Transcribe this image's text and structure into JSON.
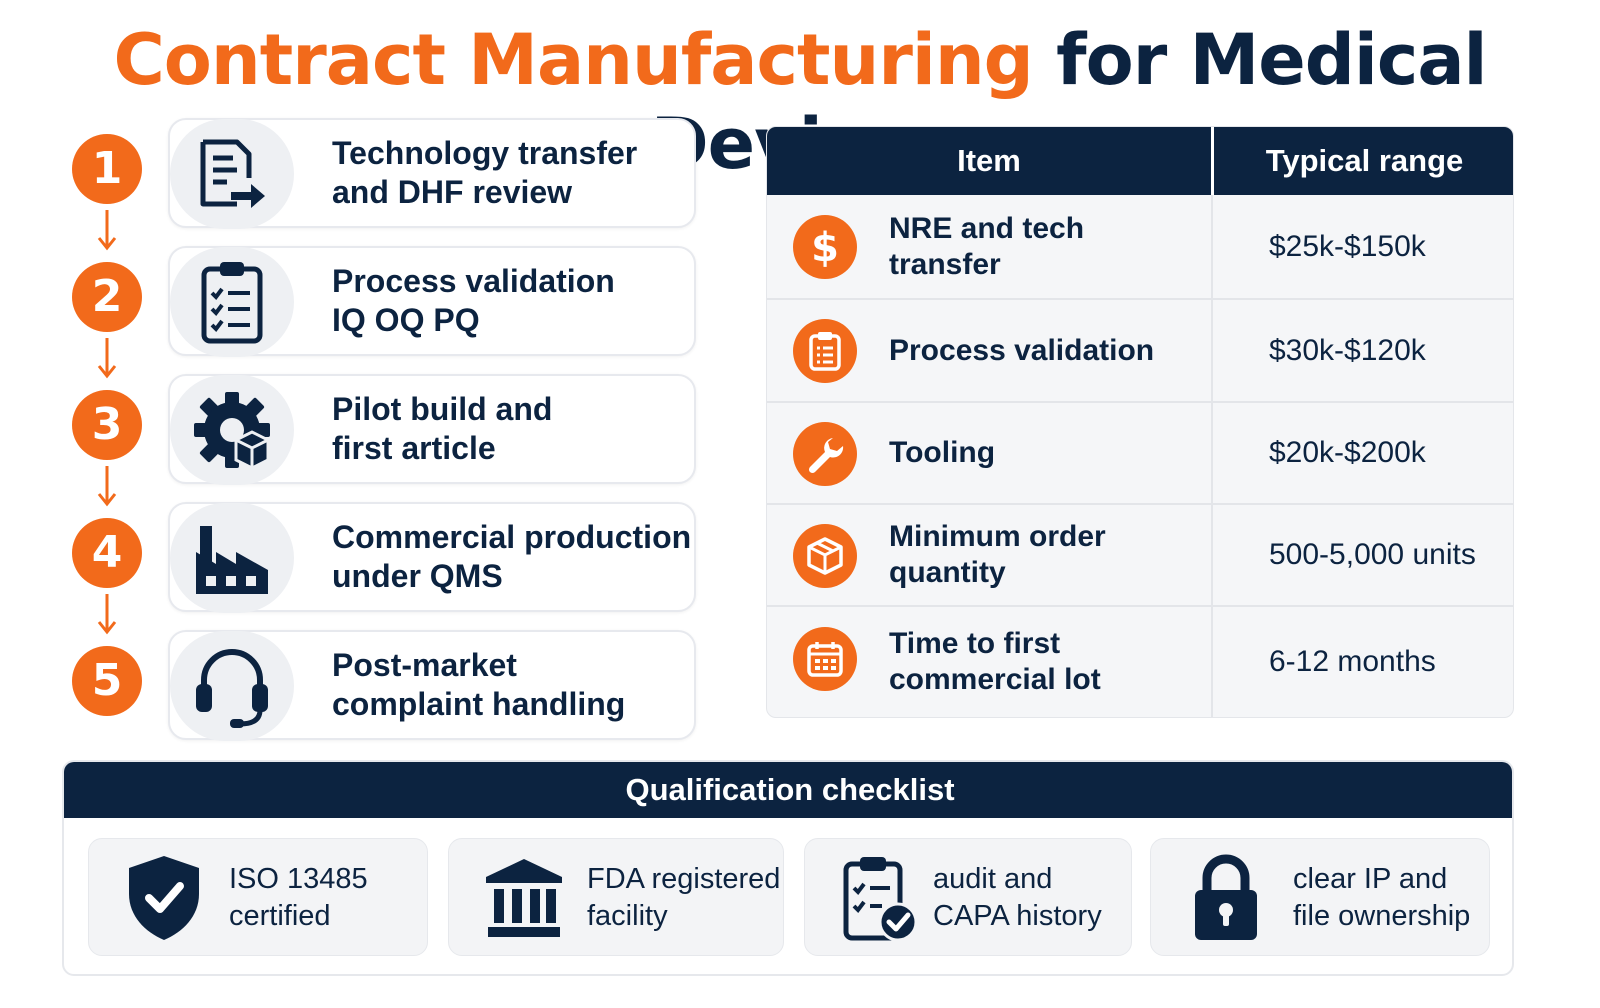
{
  "title": {
    "accent_text": "Contract Manufacturing",
    "dark_text": "for Medical Devices"
  },
  "colors": {
    "accent": "#f26a1b",
    "navy": "#0c2340",
    "card_bg": "#f3f4f6"
  },
  "steps": [
    {
      "number": "1",
      "label_line1": "Technology transfer",
      "label_line2": "and DHF review",
      "icon": "document-arrow-icon"
    },
    {
      "number": "2",
      "label_line1": "Process validation",
      "label_line2": "IQ OQ PQ",
      "icon": "clipboard-checklist-icon"
    },
    {
      "number": "3",
      "label_line1": "Pilot build and",
      "label_line2": "first article",
      "icon": "gear-box-icon"
    },
    {
      "number": "4",
      "label_line1": "Commercial production",
      "label_line2": "under QMS",
      "icon": "factory-icon"
    },
    {
      "number": "5",
      "label_line1": "Post-market",
      "label_line2": "complaint handling",
      "icon": "headset-icon"
    }
  ],
  "cost_table": {
    "header_item": "Item",
    "header_range": "Typical range",
    "rows": [
      {
        "item_line1": "NRE and tech transfer",
        "item_line2": "",
        "range": "$25k-$150k",
        "icon": "dollar-icon"
      },
      {
        "item_line1": "Process validation",
        "item_line2": "",
        "range": "$30k-$120k",
        "icon": "clipboard-icon"
      },
      {
        "item_line1": "Tooling",
        "item_line2": "",
        "range": "$20k-$200k",
        "icon": "wrench-icon"
      },
      {
        "item_line1": "Minimum order quantity",
        "item_line2": "",
        "range": "500-5,000 units",
        "icon": "box-icon"
      },
      {
        "item_line1": "Time to first",
        "item_line2": "commercial lot",
        "range": "6-12 months",
        "icon": "calendar-icon"
      }
    ]
  },
  "checklist": {
    "title": "Qualification checklist",
    "items": [
      {
        "line1": "ISO 13485",
        "line2": "certified",
        "icon": "shield-check-icon"
      },
      {
        "line1": "FDA registered",
        "line2": "facility",
        "icon": "government-building-icon"
      },
      {
        "line1": "audit and",
        "line2": "CAPA history",
        "icon": "clipboard-check-icon"
      },
      {
        "line1": "clear IP and",
        "line2": "file ownership",
        "icon": "padlock-icon"
      }
    ]
  }
}
